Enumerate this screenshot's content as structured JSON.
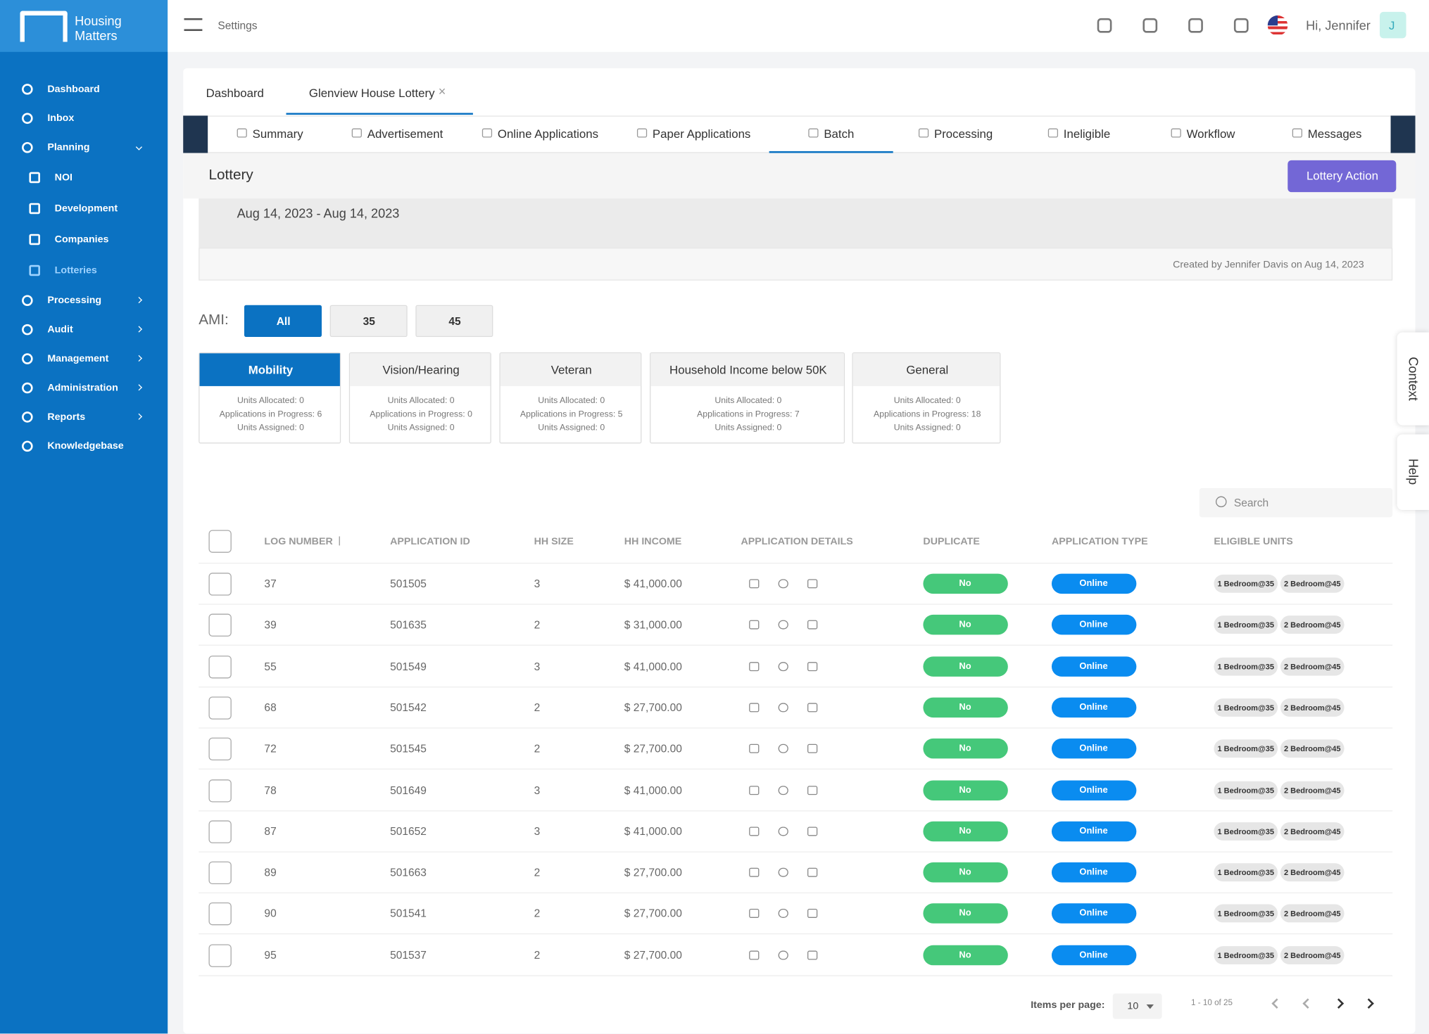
{
  "brand": {
    "line1": "Housing",
    "line2": "Matters"
  },
  "topbar": {
    "settings": "Settings",
    "greeting": "Hi, Jennifer",
    "avatar": "J"
  },
  "sidebar": [
    {
      "label": "Dashboard"
    },
    {
      "label": "Inbox"
    },
    {
      "label": "Planning"
    },
    {
      "label": "NOI",
      "sub": true
    },
    {
      "label": "Development",
      "sub": true
    },
    {
      "label": "Companies",
      "sub": true
    },
    {
      "label": "Lotteries",
      "sub": true,
      "active": true
    },
    {
      "label": "Processing"
    },
    {
      "label": "Audit"
    },
    {
      "label": "Management"
    },
    {
      "label": "Administration"
    },
    {
      "label": "Reports"
    },
    {
      "label": "Knowledgebase"
    }
  ],
  "tabs": [
    "Dashboard",
    "Glenview House Lottery"
  ],
  "subtabs": [
    "Summary",
    "Advertisement",
    "Online Applications",
    "Paper Applications",
    "Batch",
    "Processing",
    "Ineligible",
    "Workflow",
    "Messages"
  ],
  "page": {
    "title": "Lottery",
    "action": "Lottery Action",
    "dates": "Aug 14, 2023 - Aug 14, 2023",
    "created": "Created by Jennifer Davis on Aug 14, 2023"
  },
  "ami": {
    "label": "AMI:",
    "options": [
      "All",
      "35",
      "45"
    ]
  },
  "preferences": [
    {
      "name": "Mobility",
      "lines": [
        "Units Allocated: 0",
        "Applications in Progress: 6",
        "Units Assigned: 0"
      ]
    },
    {
      "name": "Vision/Hearing",
      "lines": [
        "Units Allocated: 0",
        "Applications in Progress: 0",
        "Units Assigned: 0"
      ]
    },
    {
      "name": "Veteran",
      "lines": [
        "Units Allocated: 0",
        "Applications in Progress: 5",
        "Units Assigned: 0"
      ]
    },
    {
      "name": "Household Income below 50K",
      "lines": [
        "Units Allocated: 0",
        "Applications in Progress: 7",
        "Units Assigned: 0"
      ]
    },
    {
      "name": "General",
      "lines": [
        "Units Allocated: 0",
        "Applications in Progress: 18",
        "Units Assigned: 0"
      ]
    }
  ],
  "search": "Search",
  "table": {
    "headers": [
      "LOG NUMBER",
      "APPLICATION ID",
      "HH SIZE",
      "HH INCOME",
      "APPLICATION DETAILS",
      "DUPLICATE",
      "APPLICATION TYPE",
      "ELIGIBLE UNITS"
    ],
    "rows": [
      [
        "37",
        "501505",
        "3",
        "$ 41,000.00",
        "No",
        "Online",
        "1 Bedroom@35",
        "2 Bedroom@45"
      ],
      [
        "39",
        "501635",
        "2",
        "$ 31,000.00",
        "No",
        "Online",
        "1 Bedroom@35",
        "2 Bedroom@45"
      ],
      [
        "55",
        "501549",
        "3",
        "$ 41,000.00",
        "No",
        "Online",
        "1 Bedroom@35",
        "2 Bedroom@45"
      ],
      [
        "68",
        "501542",
        "2",
        "$ 27,700.00",
        "No",
        "Online",
        "1 Bedroom@35",
        "2 Bedroom@45"
      ],
      [
        "72",
        "501545",
        "2",
        "$ 27,700.00",
        "No",
        "Online",
        "1 Bedroom@35",
        "2 Bedroom@45"
      ],
      [
        "78",
        "501649",
        "3",
        "$ 41,000.00",
        "No",
        "Online",
        "1 Bedroom@35",
        "2 Bedroom@45"
      ],
      [
        "87",
        "501652",
        "3",
        "$ 41,000.00",
        "No",
        "Online",
        "1 Bedroom@35",
        "2 Bedroom@45"
      ],
      [
        "89",
        "501663",
        "2",
        "$ 27,700.00",
        "No",
        "Online",
        "1 Bedroom@35",
        "2 Bedroom@45"
      ],
      [
        "90",
        "501541",
        "2",
        "$ 27,700.00",
        "No",
        "Online",
        "1 Bedroom@35",
        "2 Bedroom@45"
      ],
      [
        "95",
        "501537",
        "2",
        "$ 27,700.00",
        "No",
        "Online",
        "1 Bedroom@35",
        "2 Bedroom@45"
      ]
    ]
  },
  "pagination": {
    "label": "Items per page:",
    "size": "10",
    "range": "1 - 10 of 25"
  },
  "side_tabs": [
    "Context",
    "Help"
  ]
}
